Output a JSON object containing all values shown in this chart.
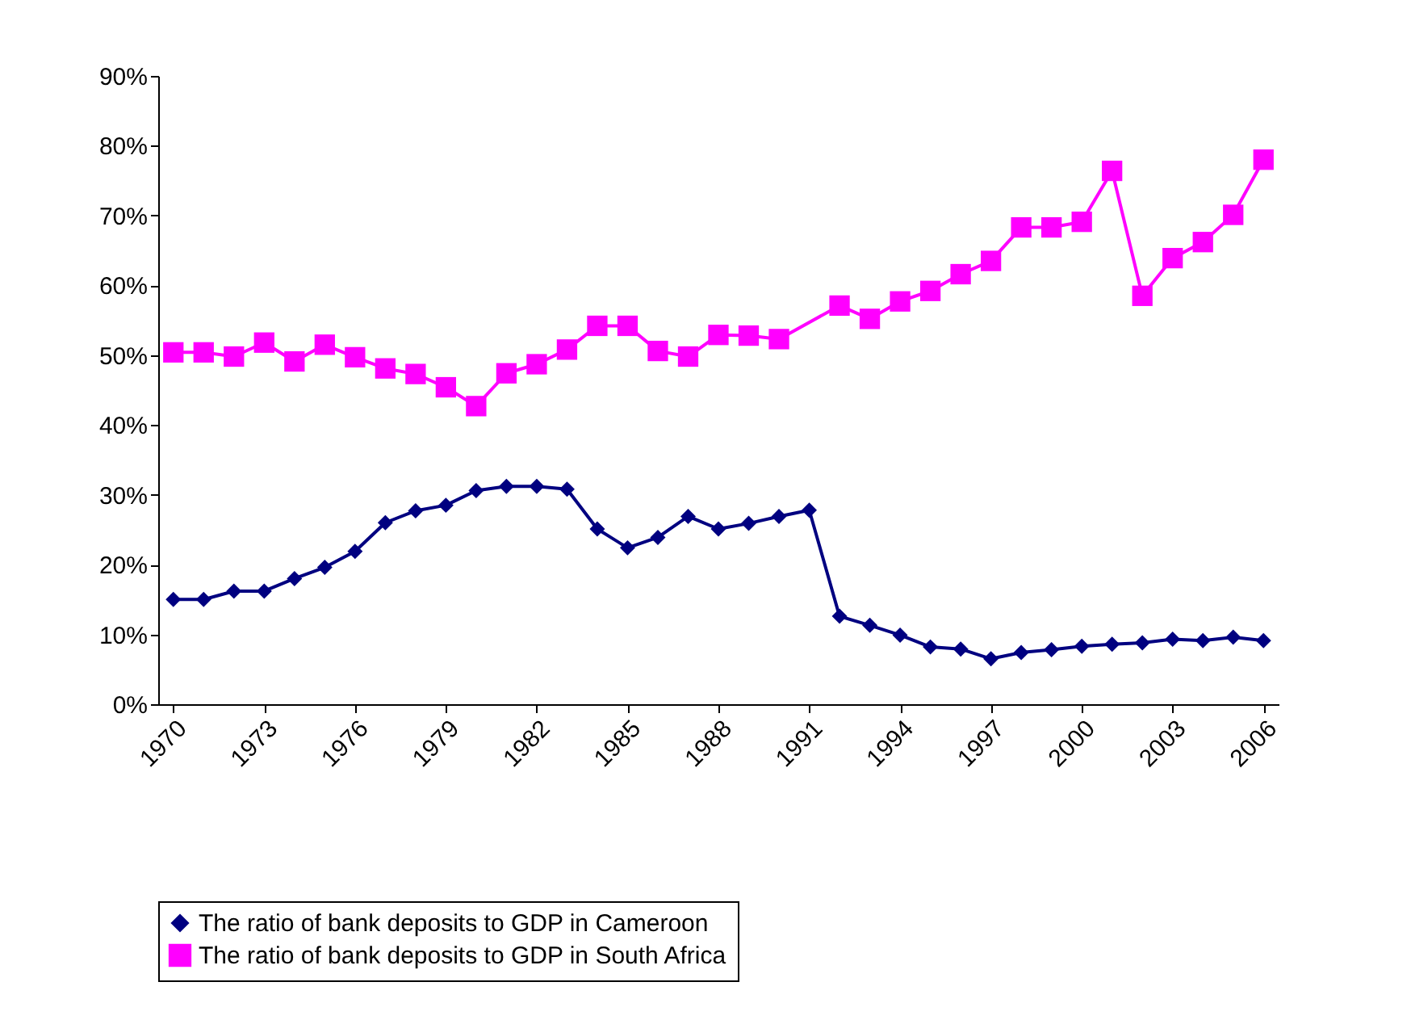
{
  "chart_data": {
    "type": "line",
    "categories": [
      "1970",
      null,
      null,
      "1973",
      null,
      null,
      "1976",
      null,
      null,
      "1979",
      null,
      null,
      "1982",
      null,
      null,
      "1985",
      null,
      null,
      "1988",
      null,
      null,
      "1991",
      null,
      null,
      "1994",
      null,
      null,
      "1997",
      null,
      null,
      "2000",
      null,
      null,
      "2003",
      null,
      null,
      "2006"
    ],
    "series": [
      {
        "name": "The ratio of bank deposits to GDP in Cameroon",
        "color": "#000080",
        "marker": "diamond",
        "values": [
          15.0,
          15.0,
          16.2,
          16.2,
          18.0,
          19.6,
          21.9,
          26.0,
          27.7,
          28.5,
          30.6,
          31.2,
          31.2,
          30.8,
          25.1,
          22.4,
          23.9,
          26.9,
          25.1,
          25.9,
          26.9,
          27.8,
          12.6,
          11.3,
          9.9,
          8.2,
          7.9,
          6.5,
          7.4,
          7.8,
          8.3,
          8.6,
          8.8,
          9.3,
          9.1,
          9.6,
          9.1
        ]
      },
      {
        "name": "The ratio of bank deposits to GDP in South Africa",
        "color": "#ff00ff",
        "marker": "square",
        "values": [
          50.4,
          50.4,
          49.8,
          51.8,
          49.1,
          51.5,
          49.7,
          48.1,
          47.3,
          45.4,
          42.7,
          47.4,
          48.7,
          50.8,
          54.2,
          54.2,
          50.6,
          49.8,
          52.9,
          52.8,
          52.3,
          null,
          57.1,
          55.2,
          57.7,
          59.2,
          61.6,
          63.5,
          68.3,
          68.3,
          69.1,
          76.4,
          58.5,
          63.9,
          66.2,
          70.1,
          78.0
        ]
      }
    ],
    "ylim": [
      0,
      90
    ],
    "yticks": [
      {
        "value": 0,
        "label": "0%"
      },
      {
        "value": 10,
        "label": "10%"
      },
      {
        "value": 20,
        "label": "20%"
      },
      {
        "value": 30,
        "label": "30%"
      },
      {
        "value": 40,
        "label": "40%"
      },
      {
        "value": 50,
        "label": "50%"
      },
      {
        "value": 60,
        "label": "60%"
      },
      {
        "value": 70,
        "label": "70%"
      },
      {
        "value": 80,
        "label": "80%"
      },
      {
        "value": 90,
        "label": "90%"
      }
    ],
    "grid": false,
    "legend": "bottom",
    "line_style": "solid"
  }
}
